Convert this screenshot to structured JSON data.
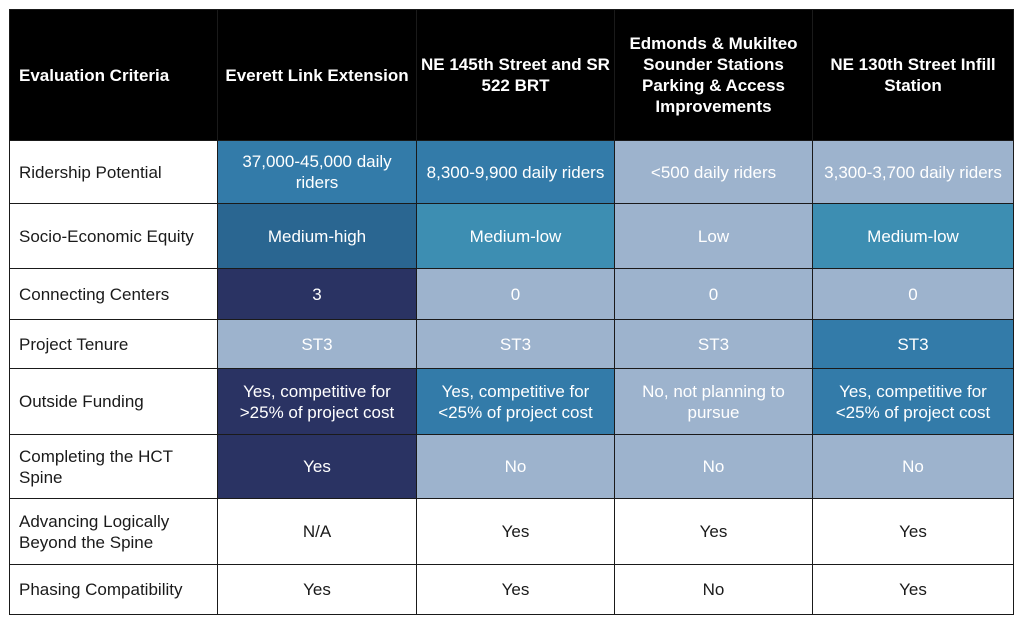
{
  "colors": {
    "header_bg": "#000000",
    "darkest": "#2a3363",
    "dark": "#2a6691",
    "medium_dark": "#337ba9",
    "medium": "#3d8eb2",
    "light": "#9db3cd",
    "white": "#ffffff"
  },
  "header": {
    "criteria": "Evaluation Criteria",
    "options": [
      "Everett Link Extension",
      "NE 145th Street and SR 522 BRT",
      "Edmonds & Mukilteo Sounder Stations Parking & Access Improvements",
      "NE 130th Street Infill Station"
    ]
  },
  "rows": [
    {
      "label": "Ridership Potential",
      "cells": [
        {
          "text": "37,000-45,000 daily riders",
          "level": "medium_dark"
        },
        {
          "text": "8,300-9,900 daily riders",
          "level": "medium_dark"
        },
        {
          "text": "<500 daily riders",
          "level": "light"
        },
        {
          "text": "3,300-3,700 daily riders",
          "level": "light"
        }
      ]
    },
    {
      "label": "Socio-Economic Equity",
      "cells": [
        {
          "text": "Medium-high",
          "level": "dark"
        },
        {
          "text": "Medium-low",
          "level": "medium"
        },
        {
          "text": "Low",
          "level": "light"
        },
        {
          "text": "Medium-low",
          "level": "medium"
        }
      ]
    },
    {
      "label": "Connecting Centers",
      "cells": [
        {
          "text": "3",
          "level": "darkest"
        },
        {
          "text": "0",
          "level": "light"
        },
        {
          "text": "0",
          "level": "light"
        },
        {
          "text": "0",
          "level": "light"
        }
      ]
    },
    {
      "label": "Project Tenure",
      "cells": [
        {
          "text": "ST3",
          "level": "light"
        },
        {
          "text": "ST3",
          "level": "light"
        },
        {
          "text": "ST3",
          "level": "light"
        },
        {
          "text": "ST3",
          "level": "medium_dark"
        }
      ]
    },
    {
      "label": "Outside Funding",
      "cells": [
        {
          "text": "Yes, competitive for >25% of project cost",
          "level": "darkest"
        },
        {
          "text": "Yes, competitive for <25% of project cost",
          "level": "medium_dark"
        },
        {
          "text": "No, not planning to pursue",
          "level": "light"
        },
        {
          "text": "Yes, competitive for <25% of project cost",
          "level": "medium_dark"
        }
      ]
    },
    {
      "label": "Completing the HCT Spine",
      "cells": [
        {
          "text": "Yes",
          "level": "darkest"
        },
        {
          "text": "No",
          "level": "light"
        },
        {
          "text": "No",
          "level": "light"
        },
        {
          "text": "No",
          "level": "light"
        }
      ]
    },
    {
      "label": "Advancing Logically Beyond the Spine",
      "cells": [
        {
          "text": "N/A",
          "level": "white"
        },
        {
          "text": "Yes",
          "level": "white"
        },
        {
          "text": "Yes",
          "level": "white"
        },
        {
          "text": "Yes",
          "level": "white"
        }
      ]
    },
    {
      "label": "Phasing Compatibility",
      "cells": [
        {
          "text": "Yes",
          "level": "white"
        },
        {
          "text": "Yes",
          "level": "white"
        },
        {
          "text": "No",
          "level": "white"
        },
        {
          "text": "Yes",
          "level": "white"
        }
      ]
    }
  ]
}
